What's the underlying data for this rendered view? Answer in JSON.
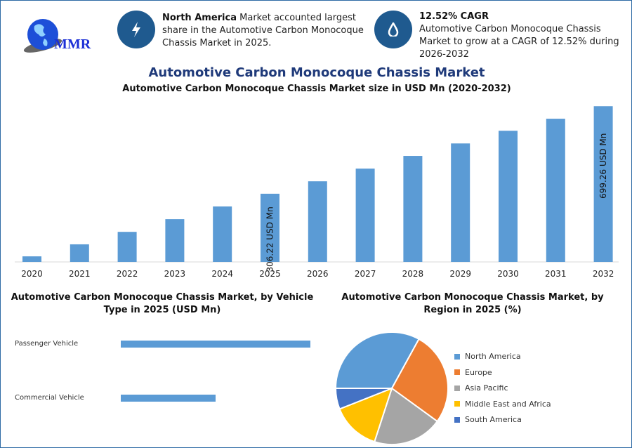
{
  "logo": {
    "text": "MMR"
  },
  "info_cards": [
    {
      "icon": "lightning-bolt-icon",
      "bold": "North America",
      "text": " Market accounted largest share in the Automotive Carbon Monocoque Chassis Market in 2025."
    },
    {
      "icon": "water-drop-icon",
      "bold": "12.52% CAGR",
      "text": "Automotive Carbon Monocoque Chassis Market to grow at a CAGR of 12.52% during 2026-2032"
    }
  ],
  "header": {
    "title": "Automotive Carbon Monocoque Chassis Market"
  },
  "colors": {
    "bar": "#5b9bd5",
    "circle": "#1f5a8f",
    "title": "#1f3a7a",
    "border": "#2e6aa5"
  },
  "chart_data": [
    {
      "type": "bar",
      "title": "Automotive Carbon Monocoque Chassis Market size in USD Mn (2020-2032)",
      "categories": [
        "2020",
        "2021",
        "2022",
        "2023",
        "2024",
        "2025",
        "2026",
        "2027",
        "2028",
        "2029",
        "2030",
        "2031",
        "2032"
      ],
      "values": [
        25,
        79,
        135,
        192,
        249,
        306.22,
        362,
        419,
        476,
        532,
        589,
        643,
        699.26
      ],
      "data_labels": {
        "2025": "306.22 USD Mn",
        "2032": "699.26 USD Mn"
      },
      "ylim": [
        0,
        700
      ],
      "grid": false
    },
    {
      "type": "bar",
      "orientation": "horizontal",
      "title": "Automotive Carbon Monocoque Chassis Market, by Vehicle Type in 2025 (USD Mn)",
      "categories": [
        "Passenger Vehicle",
        "Commercial Vehicle"
      ],
      "values": [
        1.0,
        0.5
      ],
      "note_relative_values": true
    },
    {
      "type": "pie",
      "title": "Automotive Carbon Monocoque Chassis Market, by Region in 2025 (%)",
      "categories": [
        "North America",
        "Europe",
        "Asia Pacific",
        "Middle East and Africa",
        "South America"
      ],
      "values": [
        33,
        27,
        20,
        14,
        6
      ],
      "colors": [
        "#5b9bd5",
        "#ed7d31",
        "#a5a5a5",
        "#ffc000",
        "#4472c4"
      ],
      "legend": "right"
    }
  ]
}
